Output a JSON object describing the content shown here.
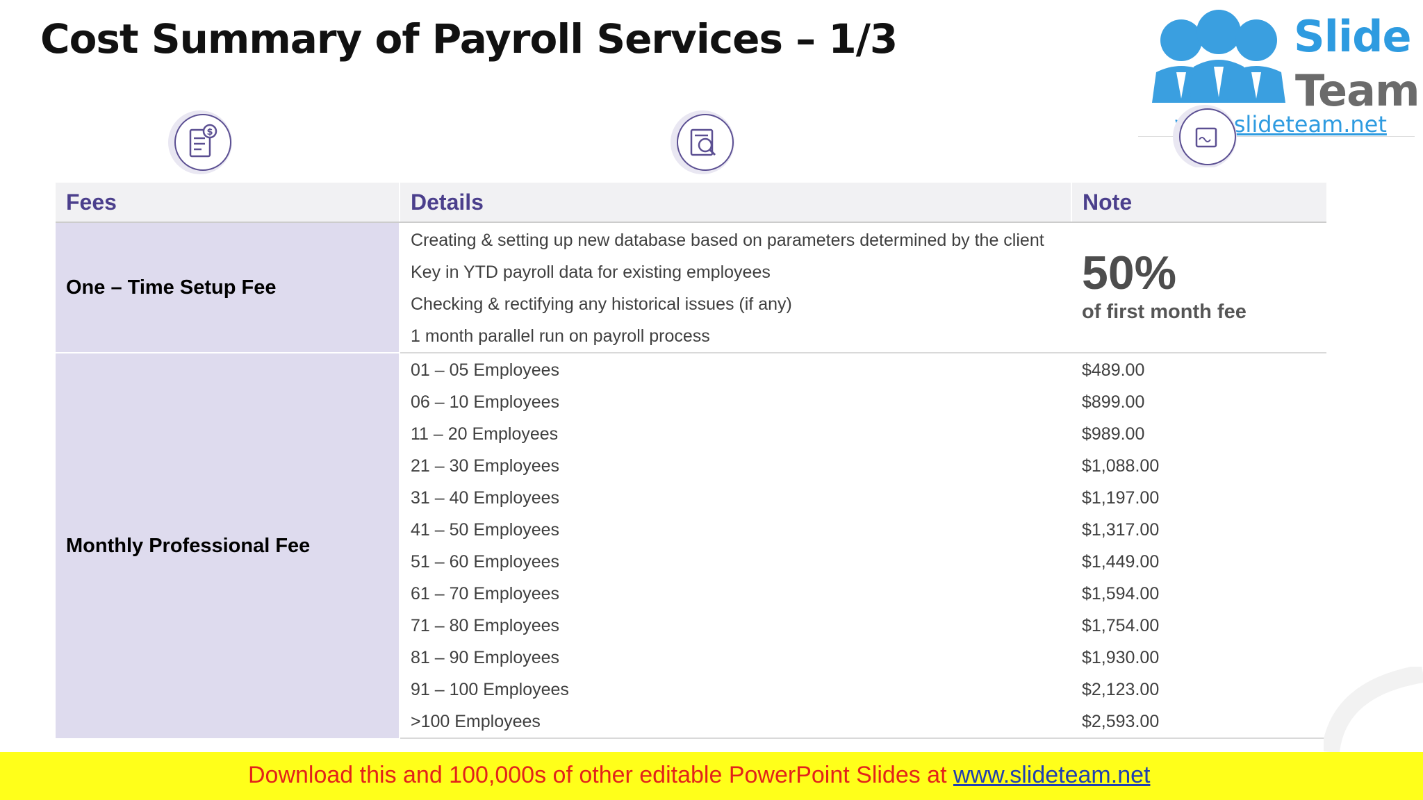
{
  "title": "Cost Summary of Payroll Services – 1/3",
  "logo": {
    "word1": "Slide",
    "word2": "Team",
    "url": "www.slideteam.net"
  },
  "header_icons": [
    "receipt-dollar-icon",
    "document-search-icon",
    "contract-signature-icon"
  ],
  "table": {
    "headers": {
      "fees": "Fees",
      "details": "Details",
      "note": "Note"
    },
    "setup": {
      "fee": "One – Time Setup Fee",
      "details": [
        "Creating & setting up new database based on parameters determined by the client",
        "Key in YTD payroll data for existing employees",
        "Checking & rectifying any historical issues (if any)",
        "1 month parallel run on payroll process"
      ],
      "note_value": "50%",
      "note_text": "of first month fee"
    },
    "monthly": {
      "fee": "Monthly Professional Fee",
      "tiers": [
        {
          "range": "01 – 05 Employees",
          "price": "$489.00"
        },
        {
          "range": "06 – 10 Employees",
          "price": "$899.00"
        },
        {
          "range": "11 – 20 Employees",
          "price": "$989.00"
        },
        {
          "range": "21 – 30 Employees",
          "price": "$1,088.00"
        },
        {
          "range": "31 – 40 Employees",
          "price": "$1,197.00"
        },
        {
          "range": "41 – 50 Employees",
          "price": "$1,317.00"
        },
        {
          "range": "51 – 60 Employees",
          "price": "$1,449.00"
        },
        {
          "range": "61 – 70 Employees",
          "price": "$1,594.00"
        },
        {
          "range": "71 – 80 Employees",
          "price": "$1,754.00"
        },
        {
          "range": "81 – 90 Employees",
          "price": "$1,930.00"
        },
        {
          "range": "91 – 100 Employees",
          "price": "$2,123.00"
        },
        {
          "range": ">100 Employees",
          "price": "$2,593.00"
        }
      ]
    }
  },
  "banner": {
    "text": "Download this and 100,000s of other editable PowerPoint Slides at ",
    "link": "www.slideteam.net"
  },
  "colors": {
    "header_text": "#4b3f8c",
    "fee_column_bg": "#dedbee",
    "header_bg": "#f1f1f3",
    "banner_bg": "#ffff1a",
    "banner_text": "#e2231a",
    "logo_blue": "#2e9be0"
  }
}
